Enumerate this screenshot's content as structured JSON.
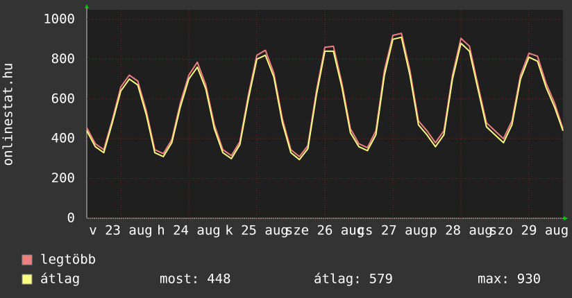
{
  "chart_data": {
    "type": "line",
    "y_label": "onlinestat.hu",
    "x": [
      0,
      3,
      6,
      9,
      12,
      15,
      18,
      21,
      24,
      27,
      30,
      33,
      36,
      39,
      42,
      45,
      48,
      51,
      54,
      57,
      60,
      63,
      66,
      69,
      72,
      75,
      78,
      81,
      84,
      87,
      90,
      93,
      96,
      99,
      102,
      105,
      108,
      111,
      114,
      117,
      120,
      123,
      126,
      129,
      132,
      135,
      138,
      141,
      144,
      147,
      150,
      153,
      156,
      159,
      162,
      165,
      168
    ],
    "xlim": [
      0,
      168
    ],
    "xticks": [
      {
        "value": 12,
        "label": "v 23 aug"
      },
      {
        "value": 36,
        "label": "h 24 aug"
      },
      {
        "value": 60,
        "label": "k 25 aug"
      },
      {
        "value": 84,
        "label": "sze 26 aug"
      },
      {
        "value": 108,
        "label": "cs 27 aug"
      },
      {
        "value": 132,
        "label": "p 28 aug"
      },
      {
        "value": 156,
        "label": "szo 29 aug"
      }
    ],
    "ylim": [
      0,
      1000
    ],
    "yticks": [
      0,
      200,
      400,
      600,
      800,
      1000
    ],
    "grid": true,
    "series": [
      {
        "name": "legtöbb",
        "color": "#f07f82",
        "values": [
          455,
          375,
          345,
          495,
          660,
          720,
          690,
          540,
          345,
          325,
          395,
          580,
          720,
          785,
          670,
          470,
          345,
          315,
          385,
          620,
          820,
          845,
          730,
          500,
          345,
          310,
          365,
          640,
          860,
          865,
          680,
          450,
          375,
          355,
          440,
          745,
          920,
          930,
          745,
          490,
          440,
          380,
          440,
          720,
          905,
          865,
          670,
          480,
          440,
          400,
          490,
          720,
          830,
          815,
          680,
          580,
          450
        ]
      },
      {
        "name": "átlag",
        "color": "#fcfc80",
        "values": [
          440,
          360,
          330,
          480,
          640,
          700,
          670,
          520,
          330,
          310,
          380,
          560,
          700,
          760,
          650,
          450,
          330,
          300,
          370,
          600,
          800,
          820,
          710,
          480,
          330,
          295,
          350,
          620,
          840,
          840,
          660,
          430,
          360,
          340,
          420,
          720,
          900,
          910,
          720,
          470,
          420,
          360,
          420,
          700,
          880,
          840,
          650,
          460,
          420,
          380,
          470,
          700,
          810,
          790,
          660,
          560,
          440
        ]
      }
    ],
    "stats": [
      {
        "label": "most:",
        "value": 448
      },
      {
        "label": "átlag:",
        "value": 579
      },
      {
        "label": "max:",
        "value": 930
      }
    ]
  }
}
